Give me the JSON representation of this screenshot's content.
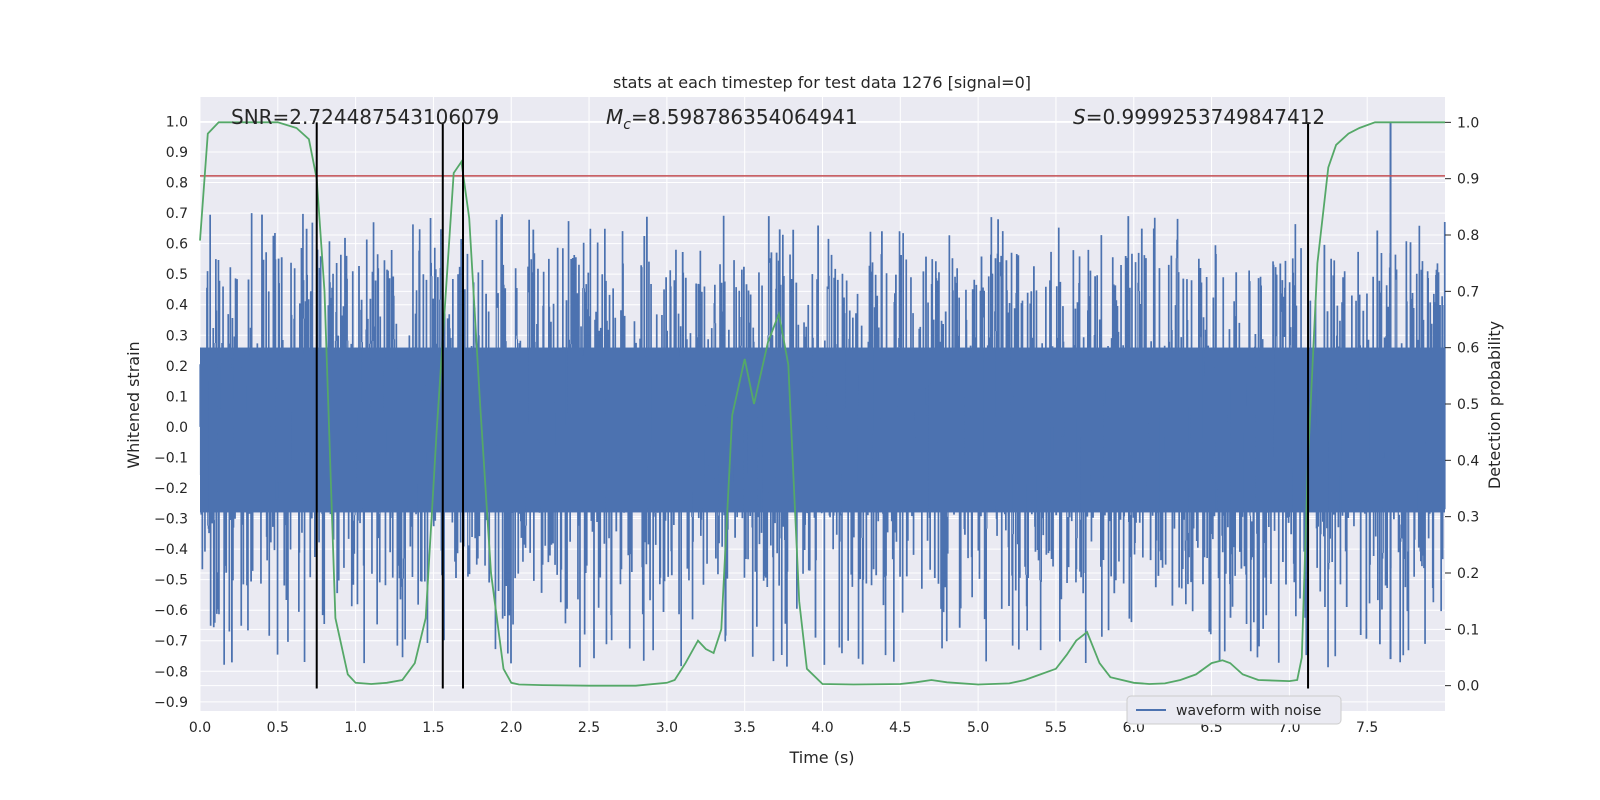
{
  "chart_data": {
    "type": "line",
    "title": "stats at each timestep for test data 1276 [signal=0]",
    "xlabel": "Time (s)",
    "ylabel_left": "Whitened strain",
    "ylabel_right": "Detection probability",
    "xlim": [
      0,
      8
    ],
    "ylim_left": [
      -0.93,
      1.08
    ],
    "ylim_right": [
      -0.045,
      1.045
    ],
    "x_ticks": [
      "0.0",
      "0.5",
      "1.0",
      "1.5",
      "2.0",
      "2.5",
      "3.0",
      "3.5",
      "4.0",
      "4.5",
      "5.0",
      "5.5",
      "6.0",
      "6.5",
      "7.0",
      "7.5"
    ],
    "y_ticks_left": [
      "−0.9",
      "−0.8",
      "−0.7",
      "−0.6",
      "−0.5",
      "−0.4",
      "−0.3",
      "−0.2",
      "−0.1",
      "0.0",
      "0.1",
      "0.2",
      "0.3",
      "0.4",
      "0.5",
      "0.6",
      "0.7",
      "0.8",
      "0.9",
      "1.0"
    ],
    "y_ticks_right": [
      "0.0",
      "0.1",
      "0.2",
      "0.3",
      "0.4",
      "0.5",
      "0.6",
      "0.7",
      "0.8",
      "0.9",
      "1.0"
    ],
    "annotations": {
      "snr": "SNR=2.724487543106079",
      "mc_symbol": "M",
      "mc_sub": "c",
      "mc_value": "=8.598786354064941",
      "s_symbol": "S",
      "s_value": "=0.9999253749847412"
    },
    "waveform": {
      "name": "waveform with noise",
      "color": "#4c72b0",
      "envelope_max": 0.5,
      "envelope_min": -0.4,
      "peak_max": 1.0,
      "peak_min": -0.83,
      "peak_max_time": 7.65
    },
    "probability": {
      "name": "detection probability",
      "color": "#55a868",
      "x": [
        0.0,
        0.05,
        0.12,
        0.3,
        0.5,
        0.62,
        0.7,
        0.75,
        0.8,
        0.87,
        0.95,
        1.0,
        1.1,
        1.2,
        1.3,
        1.38,
        1.45,
        1.52,
        1.58,
        1.63,
        1.68,
        1.73,
        1.8,
        1.87,
        1.95,
        2.0,
        2.05,
        2.2,
        2.5,
        2.8,
        3.0,
        3.05,
        3.12,
        3.2,
        3.25,
        3.3,
        3.35,
        3.42,
        3.5,
        3.56,
        3.65,
        3.72,
        3.78,
        3.85,
        3.9,
        4.0,
        4.2,
        4.5,
        4.6,
        4.7,
        4.8,
        5.0,
        5.2,
        5.3,
        5.4,
        5.5,
        5.57,
        5.63,
        5.7,
        5.78,
        5.85,
        6.0,
        6.1,
        6.2,
        6.3,
        6.4,
        6.5,
        6.57,
        6.62,
        6.7,
        6.8,
        7.0,
        7.05,
        7.08,
        7.12,
        7.18,
        7.25,
        7.3,
        7.38,
        7.45,
        7.55,
        7.7,
        8.0
      ],
      "y": [
        0.79,
        0.98,
        1.0,
        1.0,
        1.0,
        0.99,
        0.97,
        0.9,
        0.7,
        0.12,
        0.02,
        0.005,
        0.003,
        0.005,
        0.01,
        0.04,
        0.12,
        0.45,
        0.7,
        0.91,
        0.93,
        0.83,
        0.5,
        0.2,
        0.03,
        0.005,
        0.002,
        0.001,
        0.0,
        0.0,
        0.005,
        0.01,
        0.04,
        0.08,
        0.065,
        0.058,
        0.1,
        0.48,
        0.58,
        0.5,
        0.61,
        0.66,
        0.57,
        0.15,
        0.03,
        0.003,
        0.002,
        0.003,
        0.006,
        0.01,
        0.006,
        0.002,
        0.004,
        0.01,
        0.02,
        0.03,
        0.055,
        0.08,
        0.095,
        0.04,
        0.015,
        0.005,
        0.003,
        0.004,
        0.01,
        0.02,
        0.04,
        0.045,
        0.04,
        0.02,
        0.01,
        0.008,
        0.01,
        0.05,
        0.4,
        0.75,
        0.92,
        0.96,
        0.98,
        0.99,
        1.0,
        1.0,
        1.0
      ]
    },
    "threshold": {
      "value": 0.905,
      "color": "#c44e52"
    },
    "vlines": [
      0.75,
      1.56,
      1.69,
      7.12
    ],
    "vline_color": "#000000",
    "vline_ymin": -0.005,
    "vline_ymax": 1.0,
    "colors": {
      "axes_bg": "#eaeaf2",
      "grid": "#ffffff",
      "text": "#262626"
    }
  }
}
